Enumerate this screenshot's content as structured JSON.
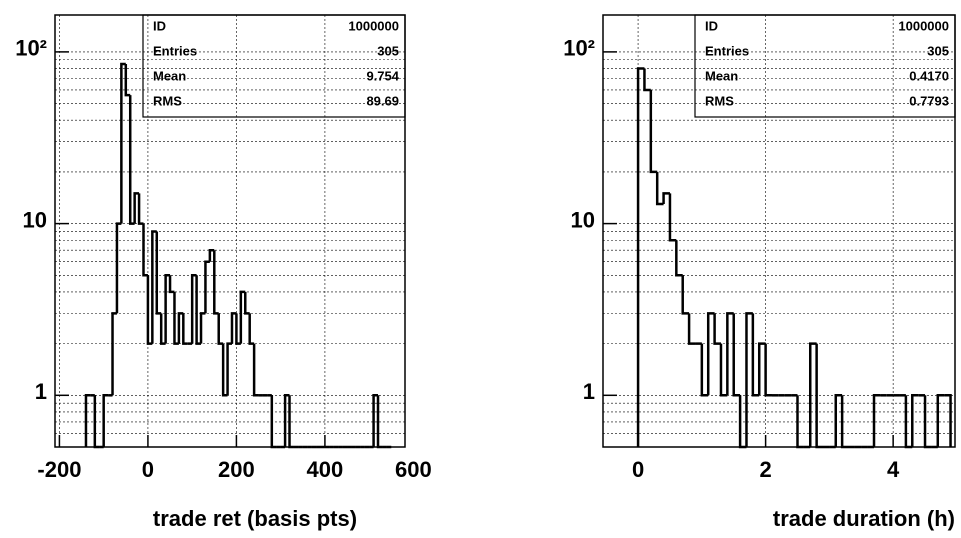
{
  "chart_data": [
    {
      "type": "histogram",
      "xlabel": "trade ret (basis pts)",
      "color": "#000000",
      "log_y": true,
      "grid": true,
      "bins": [
        -140,
        -130,
        -120,
        -110,
        -100,
        -90,
        -80,
        -70,
        -60,
        -50,
        -40,
        -30,
        -20,
        -10,
        0,
        10,
        20,
        30,
        40,
        50,
        60,
        70,
        80,
        90,
        100,
        110,
        120,
        130,
        140,
        150,
        160,
        170,
        180,
        190,
        200,
        210,
        220,
        230,
        240,
        250,
        260,
        270,
        280,
        290,
        300,
        310,
        320,
        330,
        340,
        350,
        360,
        370,
        380,
        390,
        400,
        410,
        420,
        430,
        440,
        450,
        460,
        470,
        480,
        490,
        500,
        510,
        520,
        530,
        540,
        550
      ],
      "values": [
        1,
        1,
        0,
        0,
        1,
        1,
        3,
        10,
        85,
        56,
        10,
        15,
        10,
        5,
        2,
        9,
        3,
        2,
        5,
        4,
        2,
        3,
        2,
        2,
        5,
        2,
        3,
        6,
        7,
        3,
        2,
        1,
        2,
        3,
        2,
        4,
        3,
        2,
        1,
        1,
        1,
        1,
        0,
        0,
        0,
        1,
        0,
        0,
        0,
        0,
        0,
        0,
        0,
        0,
        0,
        0,
        0,
        0,
        0,
        0,
        0,
        0,
        0,
        0,
        0,
        1,
        0,
        0,
        0
      ],
      "xlim": [
        -210,
        581
      ],
      "xticks": [
        -200,
        0,
        200,
        400,
        600
      ],
      "ylim": [
        0.5,
        164
      ],
      "yticks": [
        1,
        10,
        {
          "value": 100,
          "label": "10²"
        }
      ],
      "yticks_minor": [
        0.6,
        0.7,
        0.8,
        0.9,
        2,
        3,
        4,
        5,
        6,
        7,
        8,
        9,
        20,
        30,
        40,
        50,
        60,
        70,
        80,
        90
      ],
      "stats": [
        [
          "ID",
          1000000
        ],
        [
          "Entries",
          305
        ],
        [
          "Mean",
          9.754
        ],
        [
          "RMS",
          89.69
        ]
      ]
    },
    {
      "type": "histogram",
      "xlabel": "trade duration (h)",
      "color": "#000000",
      "log_y": true,
      "grid": true,
      "bins": [
        0,
        0.1,
        0.2,
        0.3,
        0.4,
        0.5,
        0.6,
        0.7,
        0.8,
        0.9,
        1,
        1.1,
        1.2,
        1.3,
        1.4,
        1.5,
        1.6,
        1.7,
        1.8,
        1.9,
        2,
        2.1,
        2.2,
        2.3,
        2.4,
        2.5,
        2.6,
        2.7,
        2.8,
        2.9,
        3,
        3.1,
        3.2,
        3.3,
        3.4,
        3.5,
        3.6,
        3.7,
        3.8,
        3.9,
        4,
        4.1,
        4.2,
        4.3,
        4.4,
        4.5,
        4.6,
        4.7,
        4.8,
        4.9
      ],
      "values": [
        80,
        60,
        20,
        13,
        15,
        8,
        5,
        3,
        2,
        2,
        1,
        3,
        2,
        1,
        3,
        1,
        0,
        3,
        1,
        2,
        1,
        1,
        1,
        1,
        1,
        0,
        0,
        2,
        0,
        0,
        0,
        1,
        0,
        0,
        0,
        0,
        0,
        1,
        1,
        1,
        1,
        1,
        0,
        1,
        1,
        0,
        0,
        1,
        1
      ],
      "xlim": [
        -0.55,
        4.97
      ],
      "xticks": [
        0,
        2,
        4
      ],
      "ylim": [
        0.5,
        164
      ],
      "yticks": [
        1,
        10,
        {
          "value": 100,
          "label": "10²"
        }
      ],
      "yticks_minor": [
        0.6,
        0.7,
        0.8,
        0.9,
        2,
        3,
        4,
        5,
        6,
        7,
        8,
        9,
        20,
        30,
        40,
        50,
        60,
        70,
        80,
        90
      ],
      "stats": [
        [
          "ID",
          1000000
        ],
        [
          "Entries",
          305
        ],
        [
          "Mean",
          "0.4170"
        ],
        [
          "RMS",
          0.7793
        ]
      ]
    }
  ]
}
